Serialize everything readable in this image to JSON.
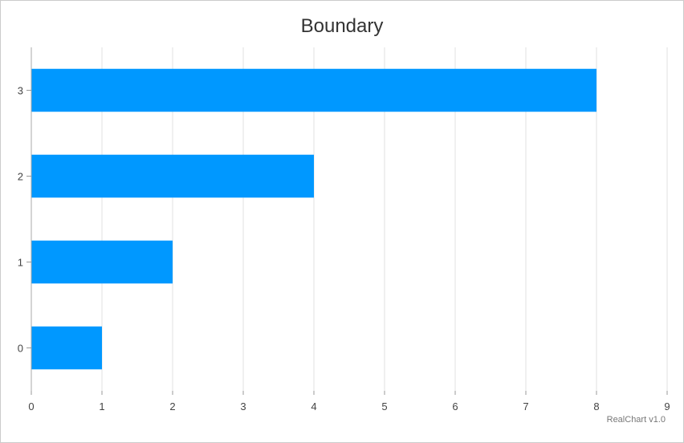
{
  "chart_data": {
    "type": "bar",
    "orientation": "horizontal",
    "title": "Boundary",
    "categories": [
      "0",
      "1",
      "2",
      "3"
    ],
    "values": [
      1,
      2,
      4,
      8
    ],
    "xlim": [
      0,
      9
    ],
    "x_ticks": [
      "0",
      "1",
      "2",
      "3",
      "4",
      "5",
      "6",
      "7",
      "8",
      "9"
    ],
    "xlabel": "",
    "ylabel": "",
    "grid": true,
    "legend": "none",
    "bar_color": "#0098ff"
  },
  "credit": "RealChart v1.0"
}
